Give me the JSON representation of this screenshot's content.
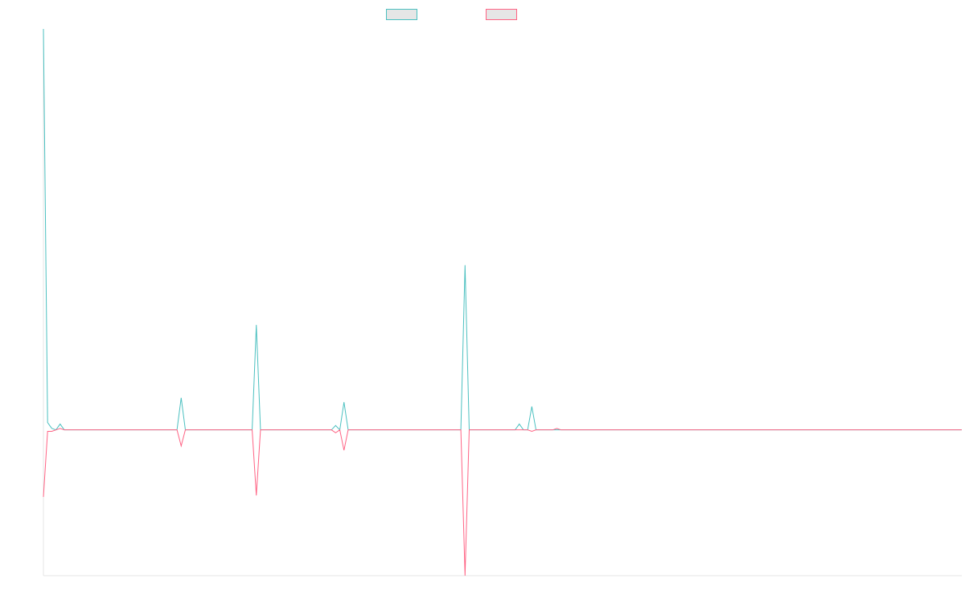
{
  "chart_data": {
    "type": "line",
    "title": "",
    "xlabel": "",
    "ylabel": "",
    "grid": false,
    "legend_position": "top-center",
    "ylim": [
      -100,
      275
    ],
    "x": [
      0,
      1,
      2,
      3,
      4,
      5,
      6,
      7,
      8,
      9,
      10,
      11,
      12,
      13,
      14,
      15,
      16,
      17,
      18,
      19,
      20,
      21,
      22,
      23,
      24,
      25,
      26,
      27,
      28,
      29,
      30,
      31,
      32,
      33,
      34,
      35,
      36,
      37,
      38,
      39,
      40,
      41,
      42,
      43,
      44,
      45,
      46,
      47,
      48,
      49,
      50,
      51,
      52,
      53,
      54,
      55,
      56,
      57,
      58,
      59,
      60,
      61,
      62,
      63,
      64,
      65,
      66,
      67,
      68,
      69,
      70,
      71,
      72,
      73,
      74,
      75,
      76,
      77,
      78,
      79,
      80,
      81,
      82,
      83,
      84,
      85,
      86,
      87,
      88,
      89,
      90,
      91,
      92,
      93,
      94,
      95,
      96,
      97,
      98,
      99,
      100,
      101,
      102,
      103,
      104,
      105,
      106,
      107,
      108,
      109,
      110,
      111,
      112,
      113,
      114,
      115,
      116,
      117,
      118,
      119,
      120,
      121,
      122,
      123,
      124,
      125,
      126,
      127,
      128,
      129,
      130,
      131,
      132,
      133,
      134,
      135,
      136,
      137,
      138,
      139,
      140,
      141,
      142,
      143,
      144,
      145,
      146,
      147,
      148,
      149,
      150,
      151,
      152,
      153,
      154,
      155,
      156,
      157,
      158,
      159,
      160,
      161,
      162,
      163,
      164,
      165,
      166,
      167,
      168,
      169,
      170,
      171,
      172,
      173,
      174,
      175,
      176,
      177,
      178,
      179,
      180,
      181,
      182,
      183,
      184,
      185,
      186,
      187,
      188,
      189,
      190,
      191,
      192,
      193,
      194,
      195,
      196,
      197,
      198,
      199,
      200,
      201,
      202,
      203,
      204,
      205,
      206,
      207,
      208,
      209,
      210,
      211,
      212,
      213,
      214,
      215,
      216,
      217,
      218,
      219,
      220
    ],
    "series": [
      {
        "name": "",
        "color": "#4bc0c0",
        "peaks": [
          [
            0,
            275
          ],
          [
            1,
            5
          ],
          [
            2,
            1
          ],
          [
            3,
            0
          ],
          [
            4,
            4
          ],
          [
            5,
            0
          ],
          [
            33,
            22
          ],
          [
            51,
            72
          ],
          [
            70,
            3
          ],
          [
            72,
            19
          ],
          [
            101,
            113
          ],
          [
            114,
            4
          ],
          [
            117,
            16
          ]
        ]
      },
      {
        "name": "",
        "color": "#ff6384",
        "peaks": [
          [
            0,
            -46
          ],
          [
            1,
            -1
          ],
          [
            2,
            -1
          ],
          [
            3,
            0
          ],
          [
            4,
            1
          ],
          [
            33,
            -11
          ],
          [
            51,
            -45
          ],
          [
            70,
            -2
          ],
          [
            72,
            -14
          ],
          [
            77,
            0
          ],
          [
            101,
            -100
          ],
          [
            117,
            -1
          ],
          [
            123,
            1
          ]
        ]
      }
    ]
  }
}
